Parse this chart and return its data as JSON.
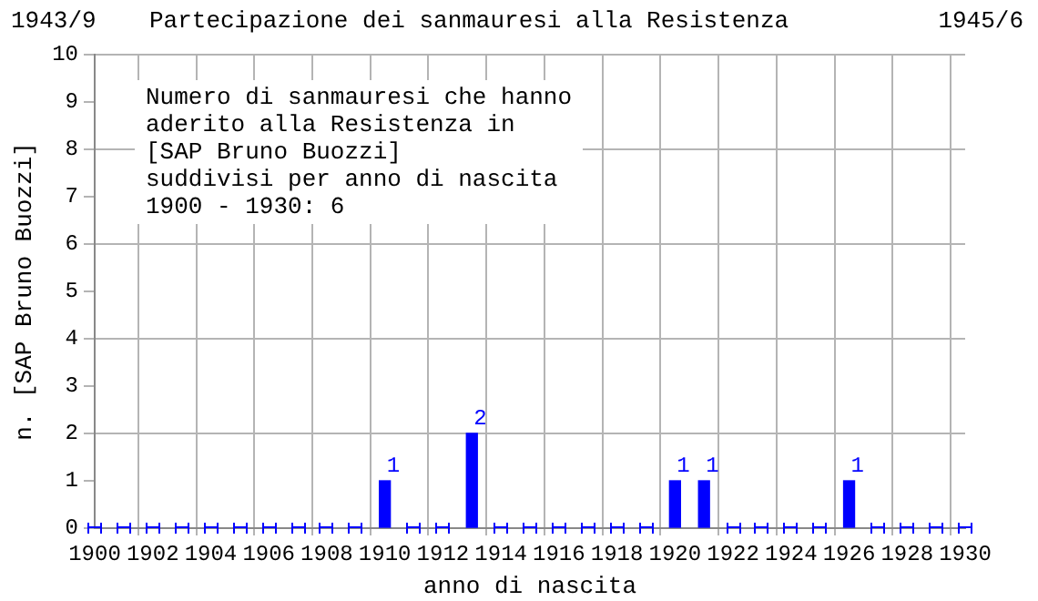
{
  "chart_data": {
    "type": "bar",
    "title": "Partecipazione dei sanmauresi alla Resistenza",
    "annotations": [
      "1943/9",
      "1945/6",
      "Numero di sanmauresi che hanno\naderito alla Resistenza in\n[SAP Bruno Buozzi]\nsuddivisi per anno di nascita\n1900 - 1930: 6"
    ],
    "xlabel": "anno di nascita",
    "ylabel": "n. [SAP Bruno Buozzi]",
    "categories": [
      "1900",
      null,
      "1902",
      null,
      "1904",
      null,
      "1906",
      null,
      "1908",
      null,
      "1910",
      null,
      "1912",
      null,
      "1914",
      null,
      "1916",
      null,
      "1918",
      null,
      "1920",
      null,
      "1922",
      null,
      "1924",
      null,
      "1926",
      null,
      "1928",
      null,
      "1930"
    ],
    "series": [
      {
        "color": "#0000ff",
        "values": [
          0,
          0,
          0,
          0,
          0,
          0,
          0,
          0,
          0,
          0,
          1,
          0,
          0,
          2,
          0,
          0,
          0,
          0,
          0,
          0,
          1,
          1,
          0,
          0,
          0,
          0,
          1,
          0,
          0,
          0,
          0
        ],
        "value_labels": [
          null,
          null,
          null,
          null,
          null,
          null,
          null,
          null,
          null,
          null,
          "1",
          null,
          null,
          "2",
          null,
          null,
          null,
          null,
          null,
          null,
          "1",
          "1",
          null,
          null,
          null,
          null,
          "1",
          null,
          null,
          null,
          null
        ]
      }
    ],
    "ylim": [
      0,
      10
    ],
    "yticks": [
      0,
      1,
      2,
      3,
      4,
      5,
      6,
      7,
      8,
      9,
      10
    ],
    "grid": true
  }
}
